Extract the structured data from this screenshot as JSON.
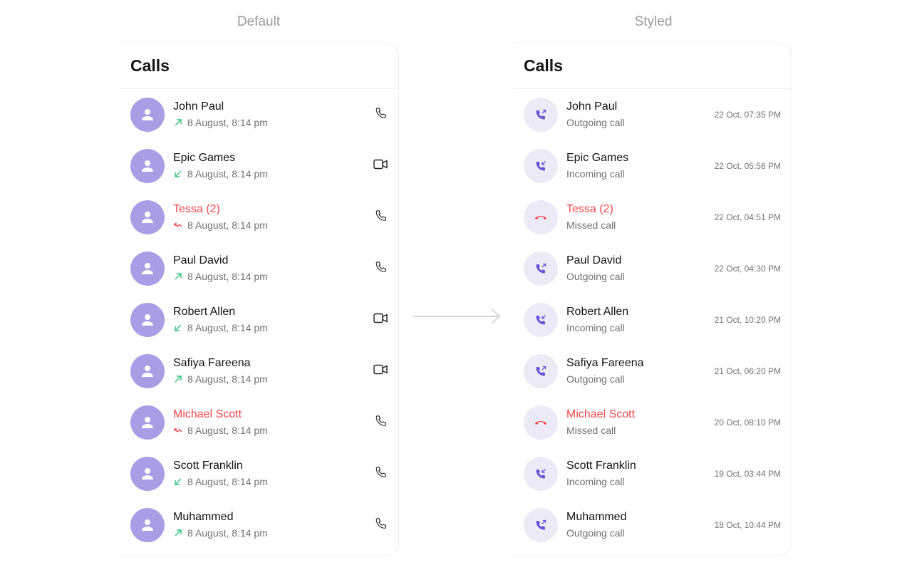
{
  "captions": {
    "left": "Default",
    "right": "Styled"
  },
  "title": "Calls",
  "colors": {
    "avatar": "#a99de6",
    "accent": "#6852d6",
    "missed": "#f44649",
    "incoming_outgoing_arrow": "#2ec27e"
  },
  "default_calls": [
    {
      "name": "John Paul",
      "direction": "outgoing",
      "subtitle": "8 August, 8:14 pm",
      "type": "audio",
      "missed": false
    },
    {
      "name": "Epic Games",
      "direction": "incoming",
      "subtitle": "8 August, 8:14 pm",
      "type": "video",
      "missed": false
    },
    {
      "name": "Tessa (2)",
      "direction": "missed",
      "subtitle": "8 August, 8:14 pm",
      "type": "audio",
      "missed": true
    },
    {
      "name": "Paul David",
      "direction": "outgoing",
      "subtitle": "8 August, 8:14 pm",
      "type": "audio",
      "missed": false
    },
    {
      "name": "Robert Allen",
      "direction": "incoming",
      "subtitle": "8 August, 8:14 pm",
      "type": "video",
      "missed": false
    },
    {
      "name": "Safiya Fareena",
      "direction": "outgoing",
      "subtitle": "8 August, 8:14 pm",
      "type": "video",
      "missed": false
    },
    {
      "name": "Michael Scott",
      "direction": "missed",
      "subtitle": "8 August, 8:14 pm",
      "type": "audio",
      "missed": true
    },
    {
      "name": "Scott Franklin",
      "direction": "incoming",
      "subtitle": "8 August, 8:14 pm",
      "type": "audio",
      "missed": false
    },
    {
      "name": "Muhammed",
      "direction": "outgoing",
      "subtitle": "8 August, 8:14 pm",
      "type": "audio",
      "missed": false
    }
  ],
  "styled_calls": [
    {
      "name": "John Paul",
      "direction": "outgoing",
      "subtitle": "Outgoing call",
      "time": "22 Oct, 07:35 PM",
      "missed": false
    },
    {
      "name": "Epic Games",
      "direction": "incoming",
      "subtitle": "Incoming call",
      "time": "22 Oct, 05:56 PM",
      "missed": false
    },
    {
      "name": "Tessa (2)",
      "direction": "missed",
      "subtitle": "Missed call",
      "time": "22 Oct, 04:51 PM",
      "missed": true
    },
    {
      "name": "Paul David",
      "direction": "outgoing",
      "subtitle": "Outgoing call",
      "time": "22 Oct, 04:30 PM",
      "missed": false
    },
    {
      "name": "Robert Allen",
      "direction": "incoming",
      "subtitle": "Incoming call",
      "time": "21 Oct, 10:20 PM",
      "missed": false
    },
    {
      "name": "Safiya Fareena",
      "direction": "outgoing",
      "subtitle": "Outgoing call",
      "time": "21 Oct, 06:20 PM",
      "missed": false
    },
    {
      "name": "Michael Scott",
      "direction": "missed",
      "subtitle": "Missed call",
      "time": "20 Oct, 08:10 PM",
      "missed": true
    },
    {
      "name": "Scott Franklin",
      "direction": "incoming",
      "subtitle": "Incoming call",
      "time": "19 Oct, 03:44 PM",
      "missed": false
    },
    {
      "name": "Muhammed",
      "direction": "outgoing",
      "subtitle": "Outgoing call",
      "time": "18 Oct, 10:44 PM",
      "missed": false
    }
  ]
}
